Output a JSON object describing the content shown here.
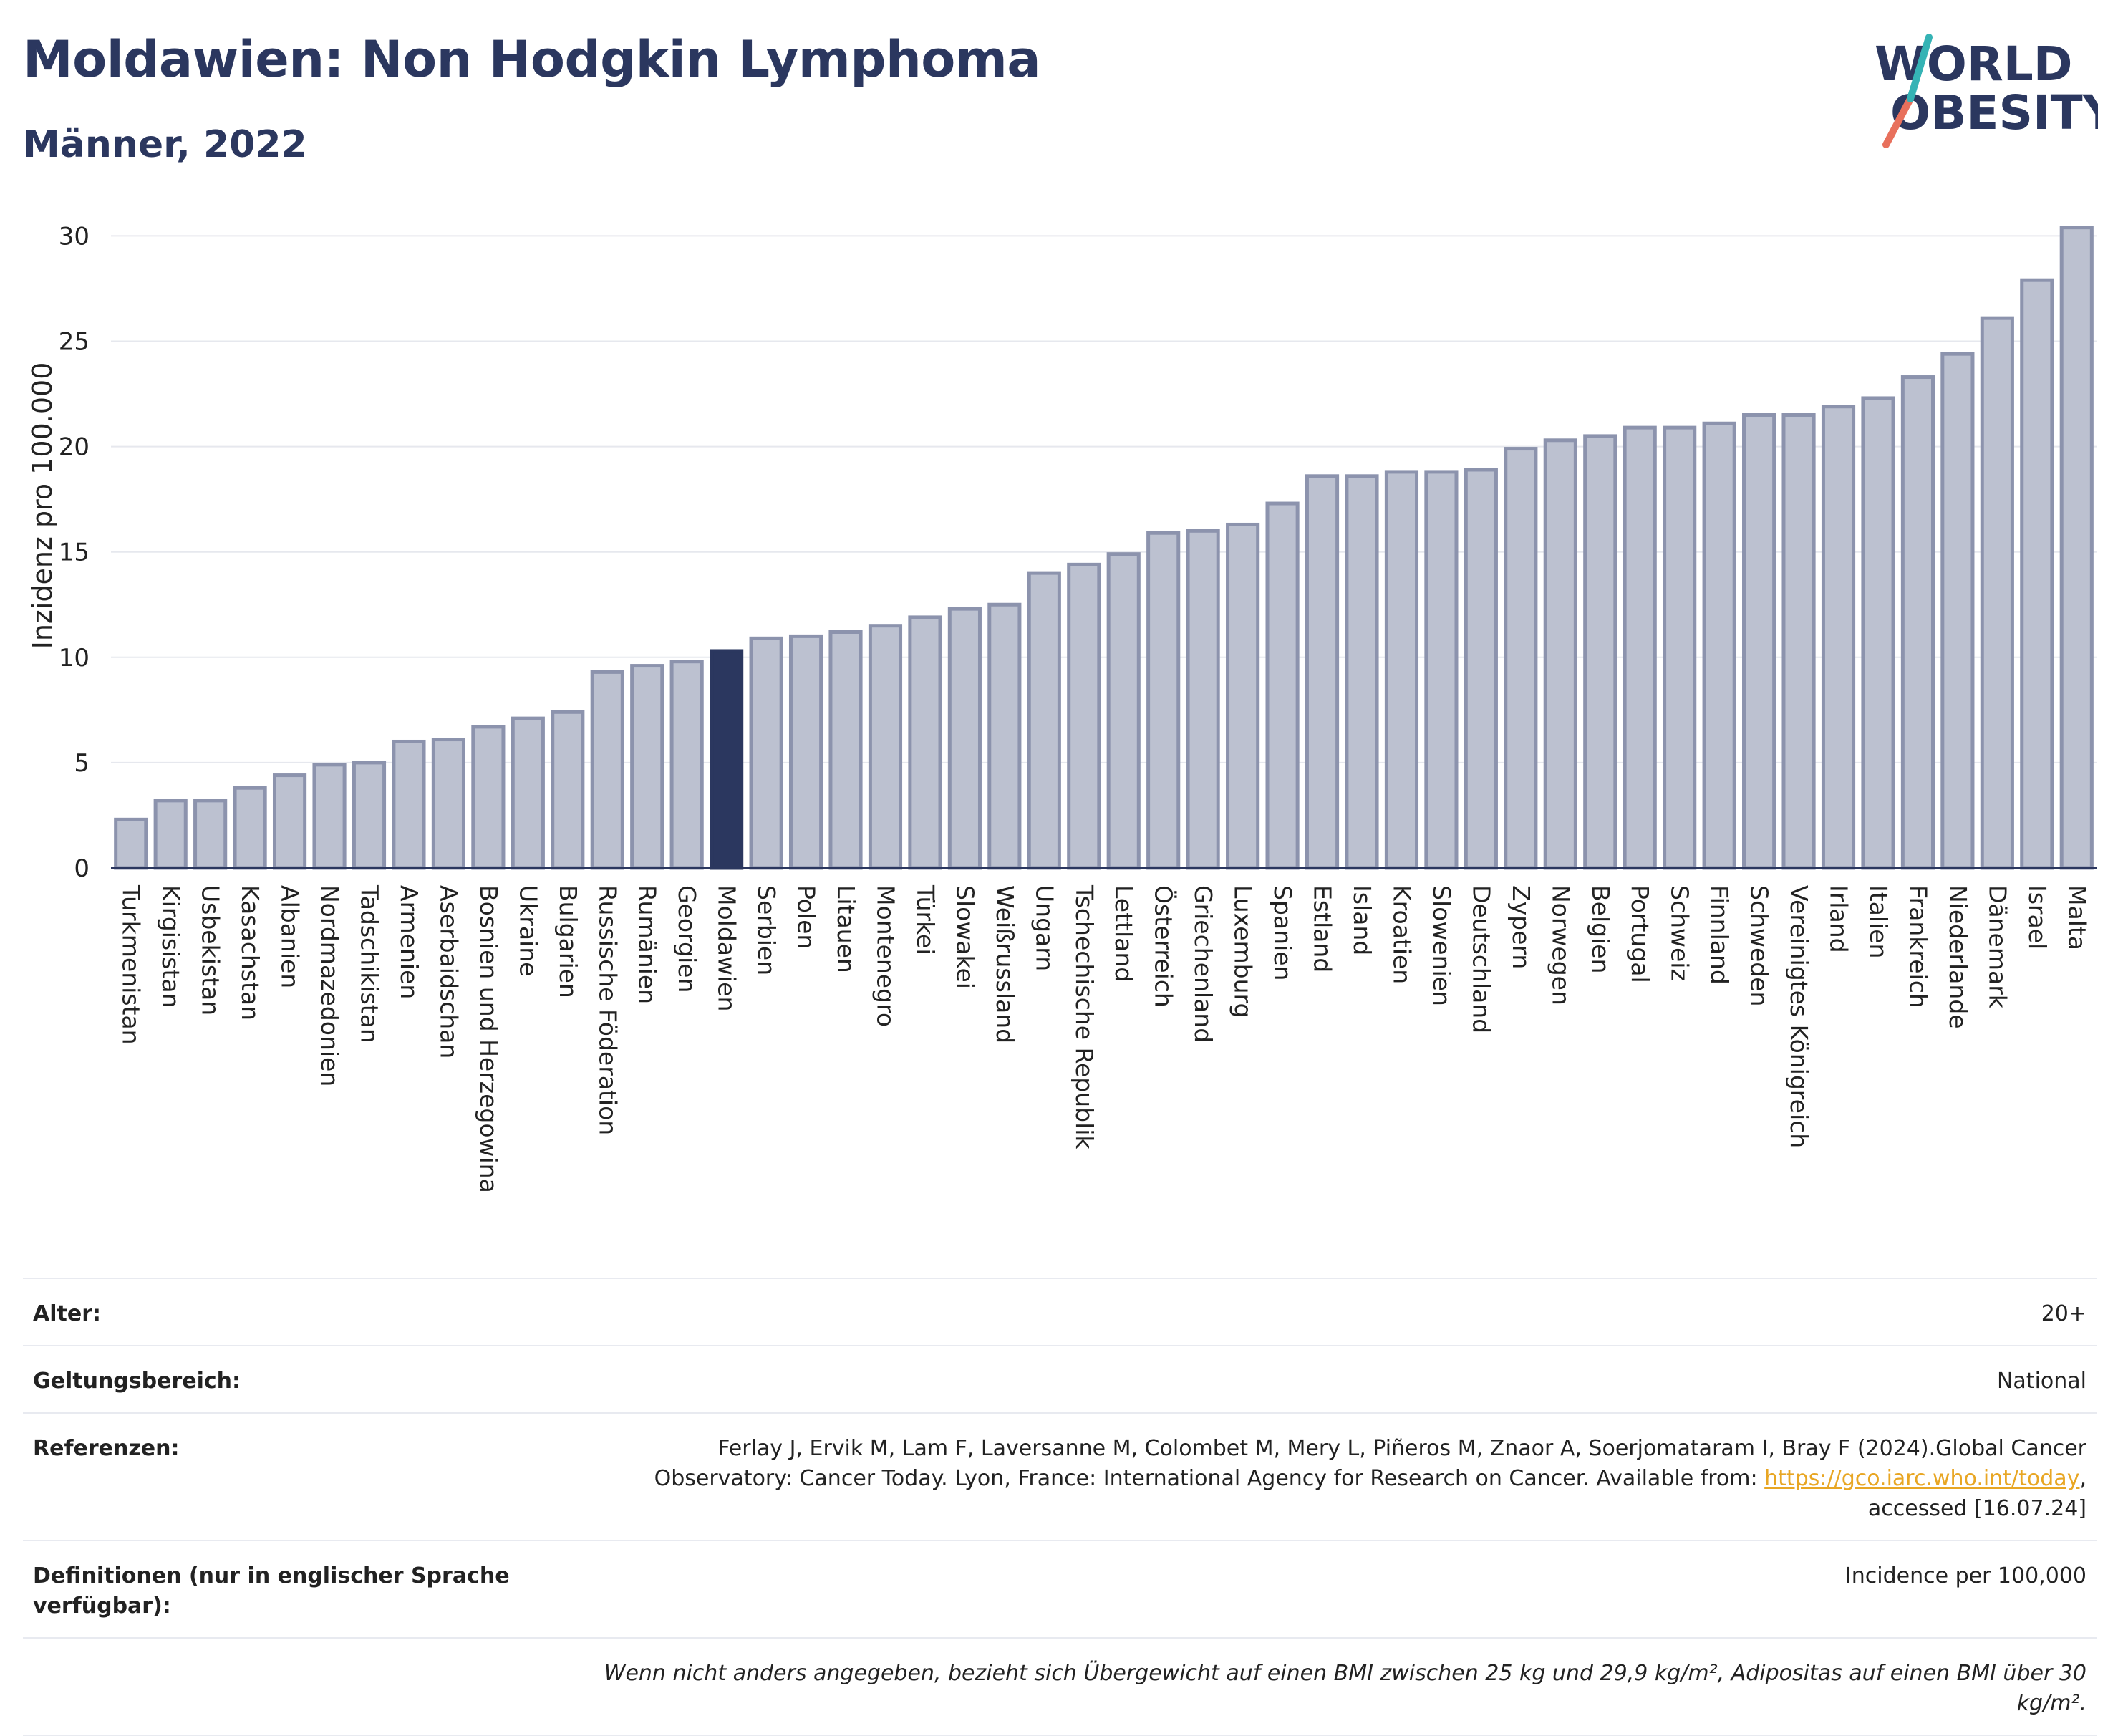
{
  "header": {
    "title": "Moldawien: Non Hodgkin Lymphoma",
    "subtitle": "Männer, 2022"
  },
  "logo": {
    "line1": "WORLD",
    "line2": "OBESITY"
  },
  "colors": {
    "bar": "#bcc1d0",
    "bar_edge": "#8c93ad",
    "highlight": "#2b375f",
    "text": "#2b375f"
  },
  "chart_data": {
    "type": "bar",
    "ylabel": "Inzidenz pro 100.000",
    "ylim": [
      0,
      31
    ],
    "yticks": [
      0,
      5,
      10,
      15,
      20,
      25,
      30
    ],
    "grid": true,
    "highlight": "Moldawien",
    "categories": [
      "Turkmenistan",
      "Kirgisistan",
      "Usbekistan",
      "Kasachstan",
      "Albanien",
      "Nordmazedonien",
      "Tadschikistan",
      "Armenien",
      "Aserbaidschan",
      "Bosnien und Herzegowina",
      "Ukraine",
      "Bulgarien",
      "Russische Föderation",
      "Rumänien",
      "Georgien",
      "Moldawien",
      "Serbien",
      "Polen",
      "Litauen",
      "Montenegro",
      "Türkei",
      "Slowakei",
      "Weißrussland",
      "Ungarn",
      "Tschechische Republik",
      "Lettland",
      "Österreich",
      "Griechenland",
      "Luxemburg",
      "Spanien",
      "Estland",
      "Island",
      "Kroatien",
      "Slowenien",
      "Deutschland",
      "Zypern",
      "Norwegen",
      "Belgien",
      "Portugal",
      "Schweiz",
      "Finnland",
      "Schweden",
      "Vereinigtes Königreich",
      "Irland",
      "Italien",
      "Frankreich",
      "Niederlande",
      "Dänemark",
      "Israel",
      "Malta"
    ],
    "values": [
      2.3,
      3.2,
      3.2,
      3.8,
      4.4,
      4.9,
      5.0,
      6.0,
      6.1,
      6.7,
      7.1,
      7.4,
      9.3,
      9.6,
      9.8,
      10.3,
      10.9,
      11.0,
      11.2,
      11.5,
      11.9,
      12.3,
      12.5,
      14.0,
      14.4,
      14.9,
      15.9,
      16.0,
      16.3,
      17.3,
      18.6,
      18.6,
      18.8,
      18.8,
      18.9,
      19.9,
      20.3,
      20.5,
      20.9,
      20.9,
      21.1,
      21.5,
      21.5,
      21.9,
      22.3,
      23.3,
      24.4,
      26.1,
      27.9,
      30.4
    ]
  },
  "info": {
    "age_label": "Alter:",
    "age_value": "20+",
    "scope_label": "Geltungsbereich:",
    "scope_value": "National",
    "ref_label": "Referenzen:",
    "ref_text1": "Ferlay J, Ervik M, Lam F, Laversanne M, Colombet M, Mery L, Piñeros M, Znaor A, Soerjomataram I, Bray F (2024).Global Cancer",
    "ref_text2": "Observatory: Cancer Today. Lyon, France: International Agency for Research on Cancer. Available from: ",
    "ref_link": "https://gco.iarc.who.int/today",
    "ref_text3": ",",
    "ref_text4": "accessed [16.07.24]",
    "def_label": "Definitionen (nur in englischer Sprache verfügbar):",
    "def_value": "Incidence per 100,000",
    "note": "Wenn nicht anders angegeben, bezieht sich Übergewicht auf einen BMI zwischen 25 kg und 29,9 kg/m², Adipositas auf einen BMI über 30 kg/m²."
  }
}
